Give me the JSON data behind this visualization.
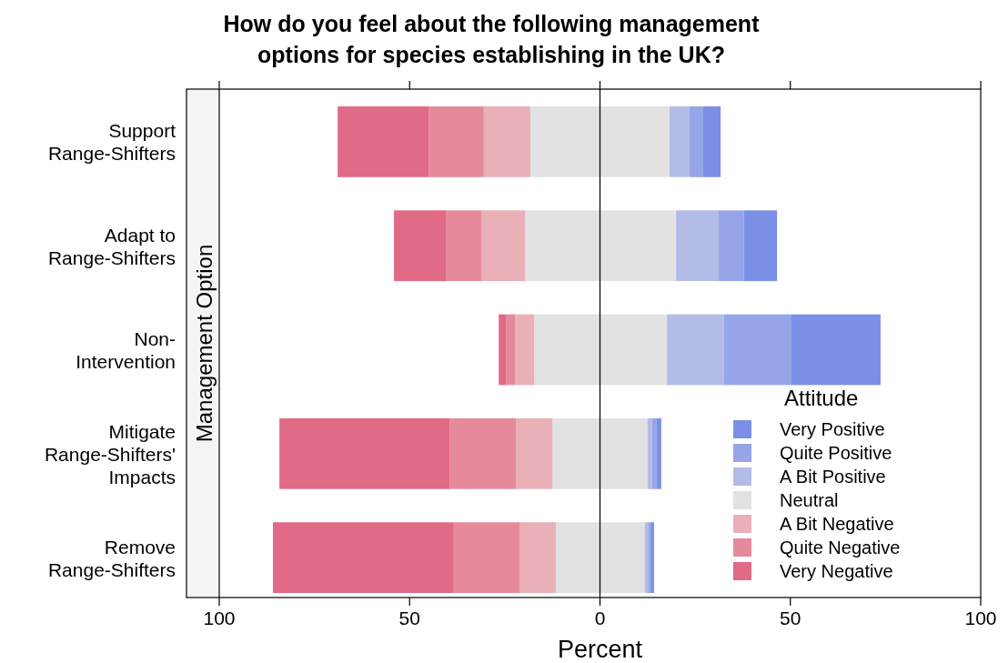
{
  "chart_data": {
    "type": "bar",
    "orientation": "horizontal",
    "stacked": true,
    "title": "How do you feel about the following management\noptions for species establishing in the UK?",
    "xlabel": "Percent",
    "ylabel": "Management Option",
    "legend_title": "Attitude",
    "legend": "bottom right",
    "categories": [
      "Support\nRange-Shifters",
      "Adapt to\nRange-Shifters",
      "Non-\nIntervention",
      "Mitigate\nRange-Shifters'\nImpacts",
      "Remove\nRange-Shifters"
    ],
    "series": [
      {
        "name": "Neutral",
        "color": "#e2e2e2",
        "values": [
          -18.3,
          -19.7,
          -17.3,
          -12.5,
          -11.6
        ]
      },
      {
        "color": "#e2e2e2",
        "values": [
          18.3,
          20.0,
          17.6,
          12.5,
          11.8
        ]
      },
      {
        "name": "A Bit Negative",
        "color": "#e9b0b8",
        "values": [
          -12.2,
          -11.5,
          -5.0,
          -9.6,
          -9.4
        ]
      },
      {
        "name": "A Bit Positive",
        "color": "#b3bbe7",
        "values": [
          5.2,
          11.2,
          15.0,
          1.2,
          1.0
        ]
      },
      {
        "name": "Quite Negative",
        "color": "#e68a9b",
        "values": [
          -14.5,
          -9.3,
          -2.4,
          -17.4,
          -17.4
        ]
      },
      {
        "name": "Quite Positive",
        "color": "#95a5e7",
        "values": [
          3.6,
          6.6,
          17.7,
          1.2,
          0.5
        ]
      },
      {
        "name": "Very Negative",
        "color": "#e16a86",
        "values": [
          -23.9,
          -13.6,
          -1.9,
          -44.7,
          -47.5
        ]
      },
      {
        "name": "Very Positive",
        "color": "#7b8fe6",
        "values": [
          4.6,
          8.7,
          23.4,
          1.2,
          0.9
        ]
      }
    ],
    "xlim": [
      -100,
      100
    ],
    "xticks": [
      {
        "value": -100,
        "label": "100"
      },
      {
        "value": -50,
        "label": "50"
      },
      0,
      50,
      100
    ],
    "ref_lines": [
      {
        "axis": "x",
        "value": 0,
        "color": "#000000"
      }
    ]
  }
}
